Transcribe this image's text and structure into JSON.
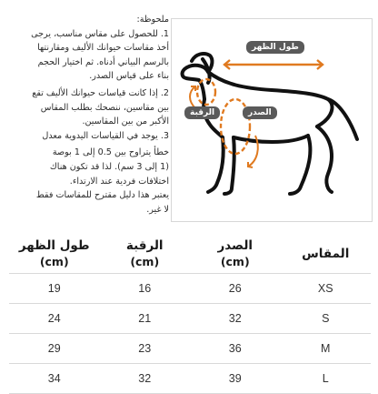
{
  "notes": {
    "title": "ملحوظة:",
    "lines": [
      "1. للحصول على مقاس مناسب، يرجى",
      "أخذ مقاسات حيوانك الأليف ومقارنتها",
      "بالرسم البياني أدناه. ثم اختيار الحجم",
      "بناء على قياس الصدر.",
      "2. إذا كانت قياسات حيوانك الأليف تقع",
      "بين مقاسين، ننصحك بطلب المقاس",
      "الأكبر من بين المقاسين.",
      "3. يوجد في القياسات اليدوية معدل",
      "خطأ يتراوح بين 0.5 إلى 1 بوصة",
      "(1 إلى 3 سم). لذا قد تكون هناك",
      "اختلافات فردية عند الارتداء.",
      "يعتبر هذا دليل مقترح للمقاسات فقط",
      "لا غير."
    ]
  },
  "diagram": {
    "back_label": "طول الظهر",
    "neck_label": "الرقبة",
    "chest_label": "الصدر",
    "colors": {
      "arrow": "#e07a20",
      "tag": "#5a5a5a",
      "dog": "#111111"
    }
  },
  "table": {
    "headers": [
      {
        "label": "طول الظهر",
        "unit": "(cm)"
      },
      {
        "label": "الرقبة",
        "unit": "(cm)"
      },
      {
        "label": "الصدر",
        "unit": "(cm)"
      },
      {
        "label": "المقاس",
        "unit": ""
      }
    ],
    "rows": [
      [
        "19",
        "16",
        "26",
        "XS"
      ],
      [
        "24",
        "21",
        "32",
        "S"
      ],
      [
        "29",
        "23",
        "36",
        "M"
      ],
      [
        "34",
        "32",
        "39",
        "L"
      ]
    ]
  }
}
